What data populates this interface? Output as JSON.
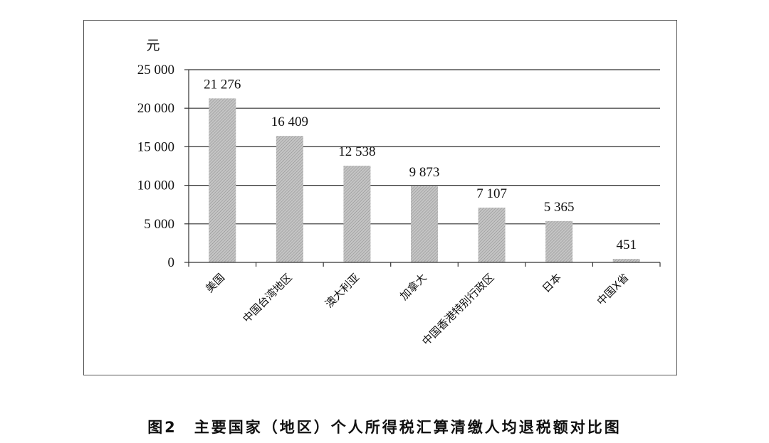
{
  "caption": "图2　主要国家（地区）个人所得税汇算清缴人均退税额对比图",
  "chart_data": {
    "type": "bar",
    "unit": "元",
    "categories": [
      "美国",
      "中国台湾地区",
      "澳大利亚",
      "加拿大",
      "中国香港特别行政区",
      "日本",
      "中国X省"
    ],
    "values": [
      21276,
      16409,
      12538,
      9873,
      7107,
      5365,
      451
    ],
    "value_labels": [
      "21 276",
      "16 409",
      "12 538",
      "9 873",
      "7 107",
      "5 365",
      "451"
    ],
    "ylim": [
      0,
      25000
    ],
    "yticks": [
      0,
      5000,
      10000,
      15000,
      20000,
      25000
    ],
    "ytick_labels": [
      "0",
      "5 000",
      "10 000",
      "15 000",
      "20 000",
      "25 000"
    ],
    "grid": true,
    "bar_color": "#b3b3b3"
  }
}
